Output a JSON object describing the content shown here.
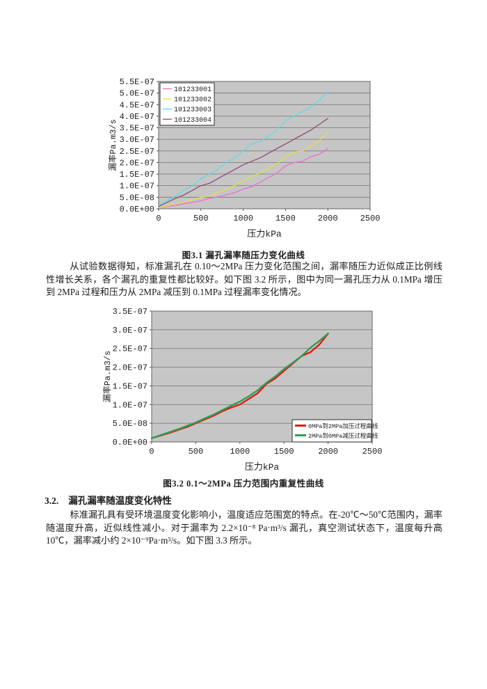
{
  "figures": {
    "fig1_caption": "图3.1 漏孔漏率随压力变化曲线",
    "fig2_caption": "图3.2  0.1～2MPa 压力范围内重复性曲线"
  },
  "section": {
    "number": "3.2.",
    "title": "漏孔漏率随温度变化特性"
  },
  "paragraphs": {
    "p1": "从试验数据得知，标准漏孔在 0.10～2MPa 压力变化范围之间，漏率随压力近似成正比例线性增长关系，各个漏孔的重复性都比较好。如下图 3.2 所示，图中为同一漏孔压力从 0.1MPa 增压到 2MPa 过程和压力从 2MPa 减压到 0.1MPa 过程漏率变化情况。",
    "p2": "标准漏孔具有受环境温度变化影响小，温度适应范围宽的特点。在-20℃～50℃范围内，漏率随温度升高，近似线性减小。对于漏率为 2.2×10⁻⁸ Pa·m³/s 漏孔，真空测试状态下，温度每升高10℃，漏率减小约 2×10⁻⁹Pa·m³/s。如下图 3.3 所示。"
  },
  "colors": {
    "plot_bg": "#c6c6c6",
    "gridline": "#7d7d7d",
    "plot_border": "#666666"
  },
  "chart_data": [
    {
      "type": "line",
      "title": "",
      "xlabel": "压力kPa",
      "ylabel": "漏率Pa.m3/s",
      "xlim": [
        0,
        2500
      ],
      "ylim": [
        0,
        5.5e-07
      ],
      "grid": true,
      "legend_position": "top-left",
      "xticks": [
        0,
        500,
        1000,
        1500,
        2000,
        2500
      ],
      "ytick_labels": [
        "0.0E+00",
        "5.0E-08",
        "1.0E-07",
        "1.5E-07",
        "2.0E-07",
        "2.5E-07",
        "3.0E-07",
        "3.5E-07",
        "4.0E-07",
        "4.5E-07",
        "5.0E-07",
        "5.5E-07"
      ],
      "x": [
        0,
        100,
        200,
        300,
        400,
        500,
        600,
        700,
        800,
        900,
        1000,
        1100,
        1200,
        1300,
        1400,
        1500,
        1600,
        1700,
        1800,
        1900,
        2000
      ],
      "series": [
        {
          "name": "101233001",
          "color": "#ef6ad2",
          "values": [
            5e-09,
            1e-08,
            1.5e-08,
            2.2e-08,
            2.8e-08,
            3.5e-08,
            4.5e-08,
            5.2e-08,
            6e-08,
            7e-08,
            8.5e-08,
            9.5e-08,
            1.15e-07,
            1.35e-07,
            1.55e-07,
            1.85e-07,
            2e-07,
            2.05e-07,
            2.25e-07,
            2.35e-07,
            2.6e-07
          ]
        },
        {
          "name": "101233002",
          "color": "#e6e23e",
          "values": [
            5e-09,
            1.2e-08,
            2e-08,
            3e-08,
            4e-08,
            5e-08,
            5.5e-08,
            7e-08,
            8.5e-08,
            1e-07,
            1.2e-07,
            1.4e-07,
            1.55e-07,
            1.75e-07,
            1.95e-07,
            2.25e-07,
            2.45e-07,
            2.5e-07,
            2.7e-07,
            2.95e-07,
            3.3e-07
          ]
        },
        {
          "name": "101233003",
          "color": "#5adce0",
          "values": [
            1.5e-08,
            3.5e-08,
            5.5e-08,
            8e-08,
            1e-07,
            1.3e-07,
            1.5e-07,
            1.7e-07,
            2e-07,
            2.2e-07,
            2.5e-07,
            2.8e-07,
            2.9e-07,
            3.15e-07,
            3.4e-07,
            3.8e-07,
            4e-07,
            4.2e-07,
            4.4e-07,
            4.7e-07,
            5.05e-07
          ]
        },
        {
          "name": "101233004",
          "color": "#8e4a72",
          "values": [
            1e-08,
            2.8e-08,
            4.5e-08,
            6e-08,
            8e-08,
            1e-07,
            1.1e-07,
            1.3e-07,
            1.5e-07,
            1.7e-07,
            1.9e-07,
            2.05e-07,
            2.2e-07,
            2.4e-07,
            2.6e-07,
            2.8e-07,
            3e-07,
            3.2e-07,
            3.4e-07,
            3.65e-07,
            3.9e-07
          ]
        }
      ]
    },
    {
      "type": "line",
      "title": "",
      "xlabel": "压力kPa",
      "ylabel": "漏率Pa.m3/s",
      "xlim": [
        0,
        2500
      ],
      "ylim": [
        0,
        3.5e-07
      ],
      "grid": true,
      "legend_position": "bottom-right",
      "xticks": [
        0,
        500,
        1000,
        1500,
        2000,
        2500
      ],
      "ytick_labels": [
        "0.0E+00",
        "5.0E-08",
        "1.0E-07",
        "1.5E-07",
        "2.0E-07",
        "2.5E-07",
        "3.0E-07",
        "3.5E-07"
      ],
      "x": [
        0,
        100,
        200,
        300,
        400,
        500,
        600,
        700,
        800,
        900,
        1000,
        1100,
        1200,
        1300,
        1400,
        1500,
        1600,
        1700,
        1800,
        1900,
        2000
      ],
      "series": [
        {
          "name": "0MPa到2MPa加压过程曲线",
          "color": "#e01c12",
          "values": [
            1e-08,
            1.7e-08,
            2.4e-08,
            3.2e-08,
            4e-08,
            5e-08,
            6e-08,
            7e-08,
            8.2e-08,
            9.2e-08,
            1e-07,
            1.15e-07,
            1.3e-07,
            1.55e-07,
            1.7e-07,
            1.9e-07,
            2.1e-07,
            2.3e-07,
            2.4e-07,
            2.6e-07,
            2.9e-07
          ]
        },
        {
          "name": "2MPa到0MPa减压过程曲线",
          "color": "#2e9e54",
          "values": [
            1e-08,
            1.8e-08,
            2.6e-08,
            3.4e-08,
            4.3e-08,
            5.2e-08,
            6.3e-08,
            7.3e-08,
            8.5e-08,
            9.7e-08,
            1.08e-07,
            1.22e-07,
            1.38e-07,
            1.58e-07,
            1.75e-07,
            1.95e-07,
            2.12e-07,
            2.3e-07,
            2.52e-07,
            2.7e-07,
            2.9e-07
          ]
        }
      ]
    }
  ]
}
